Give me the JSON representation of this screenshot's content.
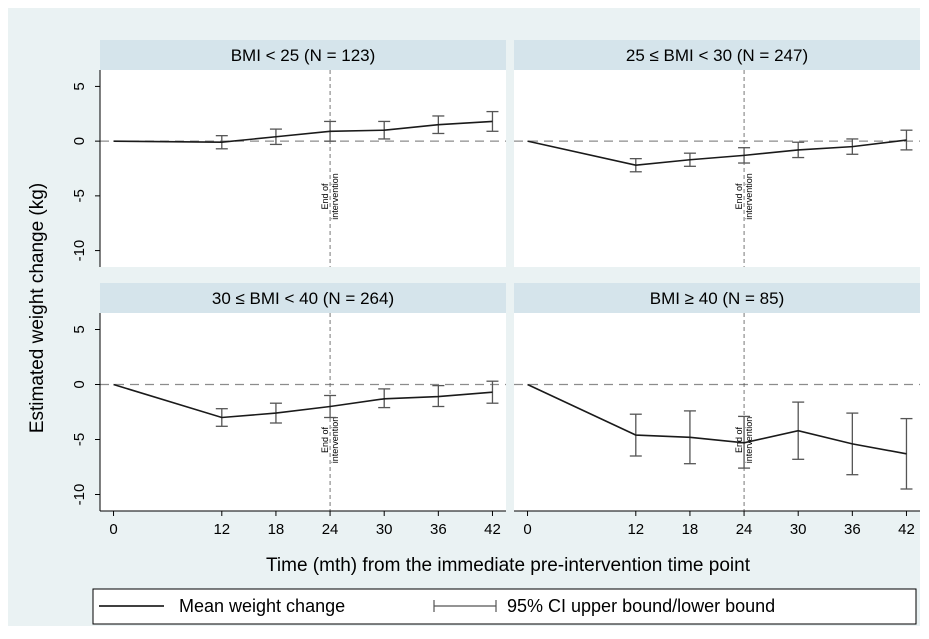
{
  "chart_data": {
    "type": "line",
    "ylabel": "Estimated weight change (kg)",
    "xlabel": "Time (mth) from the immediate pre-intervention time point",
    "x_ticks": [
      0,
      12,
      18,
      24,
      30,
      36,
      42
    ],
    "y_ticks": [
      5,
      0,
      -5,
      -10
    ],
    "xlim": [
      -1.5,
      43.5
    ],
    "ylim": [
      -11.5,
      6.5
    ],
    "reference_line_y": 0,
    "vertical_marker_x": 24,
    "annotation": {
      "line1": "End of",
      "line2": "intervention"
    },
    "legend": {
      "position": "bottom",
      "line_label": "Mean weight change",
      "ci_label": "95% CI upper bound/lower bound"
    },
    "panels": [
      {
        "title": "BMI < 25 (N = 123)",
        "x": [
          0,
          12,
          18,
          24,
          30,
          36,
          42
        ],
        "mean": [
          0,
          -0.1,
          0.4,
          0.9,
          1.0,
          1.5,
          1.8
        ],
        "ci_lower": [
          null,
          -0.7,
          -0.3,
          0.0,
          0.2,
          0.7,
          0.9
        ],
        "ci_upper": [
          null,
          0.5,
          1.1,
          1.8,
          1.8,
          2.3,
          2.7
        ]
      },
      {
        "title": "25 ≤ BMI < 30 (N = 247)",
        "x": [
          0,
          12,
          18,
          24,
          30,
          36,
          42
        ],
        "mean": [
          0,
          -2.2,
          -1.7,
          -1.3,
          -0.8,
          -0.5,
          0.1
        ],
        "ci_lower": [
          null,
          -2.8,
          -2.3,
          -2.0,
          -1.5,
          -1.2,
          -0.8
        ],
        "ci_upper": [
          null,
          -1.6,
          -1.1,
          -0.6,
          -0.1,
          0.2,
          1.0
        ]
      },
      {
        "title": "30 ≤ BMI < 40 (N = 264)",
        "x": [
          0,
          12,
          18,
          24,
          30,
          36,
          42
        ],
        "mean": [
          0,
          -3.0,
          -2.6,
          -2.0,
          -1.3,
          -1.1,
          -0.7
        ],
        "ci_lower": [
          null,
          -3.8,
          -3.5,
          -3.0,
          -2.1,
          -2.0,
          -1.7
        ],
        "ci_upper": [
          null,
          -2.2,
          -1.7,
          -1.0,
          -0.4,
          -0.1,
          0.3
        ]
      },
      {
        "title": "BMI ≥ 40 (N = 85)",
        "x": [
          0,
          12,
          18,
          24,
          30,
          36,
          42
        ],
        "mean": [
          0,
          -4.6,
          -4.8,
          -5.3,
          -4.2,
          -5.4,
          -6.3
        ],
        "ci_lower": [
          null,
          -6.5,
          -7.2,
          -7.6,
          -6.8,
          -8.2,
          -9.5
        ],
        "ci_upper": [
          null,
          -2.7,
          -2.4,
          -2.9,
          -1.6,
          -2.6,
          -3.1
        ]
      }
    ]
  }
}
